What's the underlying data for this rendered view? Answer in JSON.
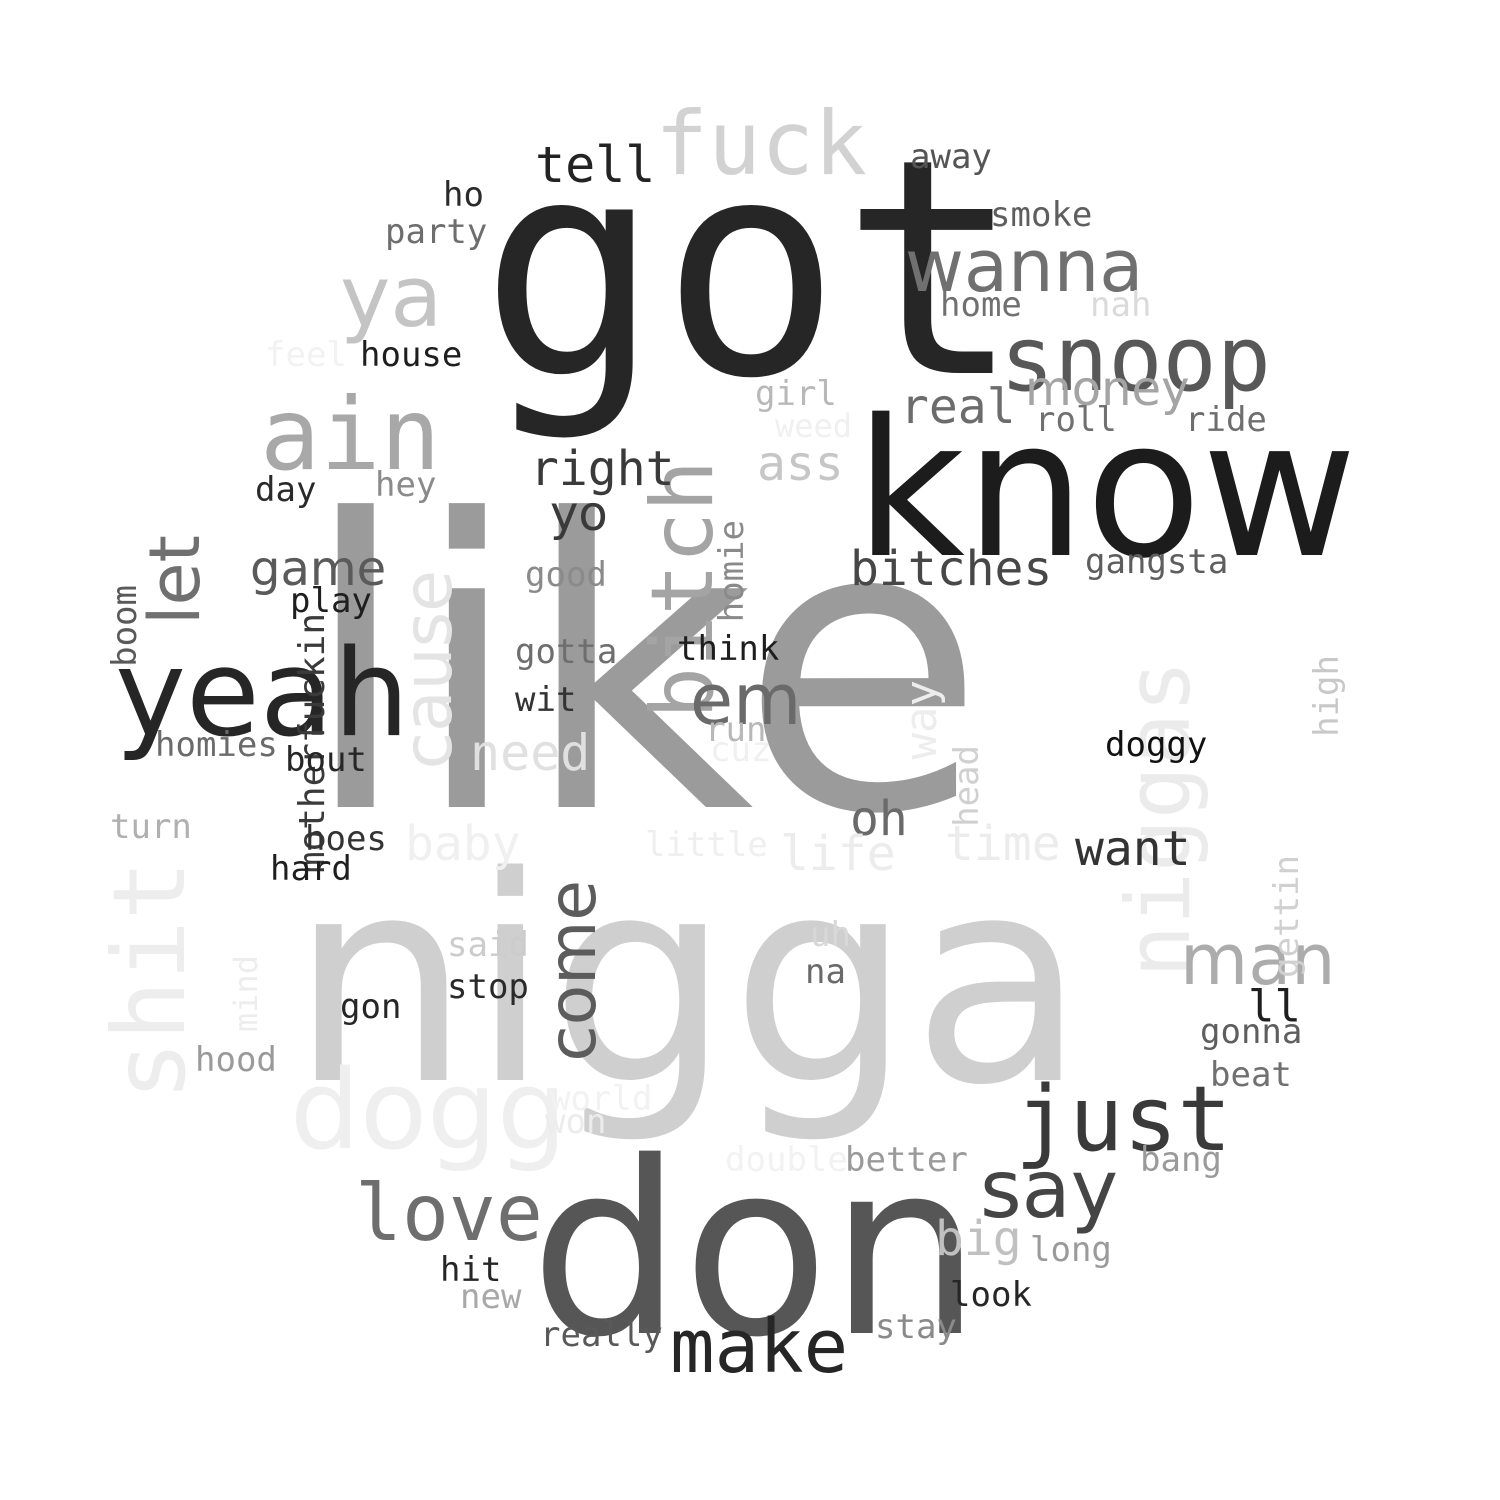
{
  "words": [
    {
      "id": "like",
      "text": "like",
      "color": "#9b9b9b"
    },
    {
      "id": "nigga",
      "text": "nigga",
      "color": "#cfcfcf"
    },
    {
      "id": "got",
      "text": "got",
      "color": "#262626"
    },
    {
      "id": "know",
      "text": "know",
      "color": "#1c1c1c"
    },
    {
      "id": "don",
      "text": "don",
      "color": "#565656"
    },
    {
      "id": "fuck",
      "text": "fuck",
      "color": "#d2d2d2"
    },
    {
      "id": "yeah",
      "text": "yeah",
      "color": "#262626"
    },
    {
      "id": "ain",
      "text": "ain",
      "color": "#a8a8a8"
    },
    {
      "id": "snoop",
      "text": "snoop",
      "color": "#585858"
    },
    {
      "id": "wanna",
      "text": "wanna",
      "color": "#707070"
    },
    {
      "id": "ya",
      "text": "ya",
      "color": "#c4c4c4"
    },
    {
      "id": "dogg",
      "text": "dogg",
      "color": "#efefef"
    },
    {
      "id": "just",
      "text": "just",
      "color": "#3a3a3a"
    },
    {
      "id": "say",
      "text": "say",
      "color": "#454545"
    },
    {
      "id": "make",
      "text": "make",
      "color": "#262626"
    },
    {
      "id": "love",
      "text": "love",
      "color": "#6e6e6e"
    },
    {
      "id": "bitch",
      "text": "bitch",
      "color": "#a4a4a4"
    },
    {
      "id": "niggas",
      "text": "niggas",
      "color": "#ebebeb"
    },
    {
      "id": "shit",
      "text": "shit",
      "color": "#ededed"
    },
    {
      "id": "cause",
      "text": "cause",
      "color": "#e4e4e4"
    },
    {
      "id": "come",
      "text": "come",
      "color": "#5c5c5c"
    },
    {
      "id": "let",
      "text": "let",
      "color": "#707070"
    },
    {
      "id": "em",
      "text": "em",
      "color": "#6a6a6a"
    },
    {
      "id": "man",
      "text": "man",
      "color": "#acacac"
    },
    {
      "id": "money",
      "text": "money",
      "color": "#a4a4a4"
    },
    {
      "id": "real",
      "text": "real",
      "color": "#6c6c6c"
    },
    {
      "id": "bitches",
      "text": "bitches",
      "color": "#474747"
    },
    {
      "id": "right",
      "text": "right",
      "color": "#3a3a3a"
    },
    {
      "id": "tell",
      "text": "tell",
      "color": "#232323"
    },
    {
      "id": "yo",
      "text": "yo",
      "color": "#3a3a3a"
    },
    {
      "id": "game",
      "text": "game",
      "color": "#5a5a5a"
    },
    {
      "id": "need",
      "text": "need",
      "color": "#e0e0e0"
    },
    {
      "id": "want",
      "text": "want",
      "color": "#333333"
    },
    {
      "id": "oh",
      "text": "oh",
      "color": "#6a6a6a"
    },
    {
      "id": "time",
      "text": "time",
      "color": "#ececec"
    },
    {
      "id": "life",
      "text": "life",
      "color": "#ececec"
    },
    {
      "id": "baby",
      "text": "baby",
      "color": "#f0f0f0"
    },
    {
      "id": "big",
      "text": "big",
      "color": "#c0c0c0"
    },
    {
      "id": "ass",
      "text": "ass",
      "color": "#c6c6c6"
    },
    {
      "id": "way",
      "text": "way",
      "color": "#ededed"
    },
    {
      "id": "motherfuckin",
      "text": "motherfuckin",
      "color": "#3a3a3a"
    },
    {
      "id": "homie",
      "text": "homie",
      "color": "#8a8a8a"
    },
    {
      "id": "head",
      "text": "head",
      "color": "#d0d0d0"
    },
    {
      "id": "gettin",
      "text": "gettin",
      "color": "#d0d0d0"
    },
    {
      "id": "high",
      "text": "high",
      "color": "#c8c8c8"
    },
    {
      "id": "boom",
      "text": "boom",
      "color": "#595959"
    },
    {
      "id": "mind",
      "text": "mind",
      "color": "#ededed"
    },
    {
      "id": "away",
      "text": "away",
      "color": "#555555"
    },
    {
      "id": "smoke",
      "text": "smoke",
      "color": "#5e5e5e"
    },
    {
      "id": "home",
      "text": "home",
      "color": "#707070"
    },
    {
      "id": "nah",
      "text": "nah",
      "color": "#dadada"
    },
    {
      "id": "ho",
      "text": "ho",
      "color": "#2a2a2a"
    },
    {
      "id": "party",
      "text": "party",
      "color": "#6e6e6e"
    },
    {
      "id": "house",
      "text": "house",
      "color": "#1e1e1e"
    },
    {
      "id": "feel",
      "text": "feel",
      "color": "#f2f2f2"
    },
    {
      "id": "girl",
      "text": "girl",
      "color": "#b8b8b8"
    },
    {
      "id": "weed",
      "text": "weed",
      "color": "#f0f0f0"
    },
    {
      "id": "roll",
      "text": "roll",
      "color": "#707070"
    },
    {
      "id": "ride",
      "text": "ride",
      "color": "#6e6e6e"
    },
    {
      "id": "day",
      "text": "day",
      "color": "#2a2a2a"
    },
    {
      "id": "hey",
      "text": "hey",
      "color": "#8a8a8a"
    },
    {
      "id": "good",
      "text": "good",
      "color": "#8a8a8a"
    },
    {
      "id": "gangsta",
      "text": "gangsta",
      "color": "#5e5e5e"
    },
    {
      "id": "play",
      "text": "play",
      "color": "#1e1e1e"
    },
    {
      "id": "gotta",
      "text": "gotta",
      "color": "#6e6e6e"
    },
    {
      "id": "think",
      "text": "think",
      "color": "#1e1e1e"
    },
    {
      "id": "wit",
      "text": "wit",
      "color": "#333333"
    },
    {
      "id": "run",
      "text": "run",
      "color": "#b8b8b8"
    },
    {
      "id": "cuz",
      "text": "cuz",
      "color": "#f0f0f0"
    },
    {
      "id": "doggy",
      "text": "doggy",
      "color": "#111111"
    },
    {
      "id": "homies",
      "text": "homies",
      "color": "#6a6a6a"
    },
    {
      "id": "bout",
      "text": "bout",
      "color": "#262626"
    },
    {
      "id": "turn",
      "text": "turn",
      "color": "#b0b0b0"
    },
    {
      "id": "hoes",
      "text": "hoes",
      "color": "#333333"
    },
    {
      "id": "hard",
      "text": "hard",
      "color": "#1e1e1e"
    },
    {
      "id": "little",
      "text": "little",
      "color": "#efefef"
    },
    {
      "id": "said",
      "text": "said",
      "color": "#cccccc"
    },
    {
      "id": "stop",
      "text": "stop",
      "color": "#2a2a2a"
    },
    {
      "id": "uh",
      "text": "uh",
      "color": "#d8d8d8"
    },
    {
      "id": "na",
      "text": "na",
      "color": "#6a6a6a"
    },
    {
      "id": "ll",
      "text": "ll",
      "color": "#1e1e1e"
    },
    {
      "id": "gonna",
      "text": "gonna",
      "color": "#5e5e5e"
    },
    {
      "id": "gon",
      "text": "gon",
      "color": "#262626"
    },
    {
      "id": "hood",
      "text": "hood",
      "color": "#9a9a9a"
    },
    {
      "id": "beat",
      "text": "beat",
      "color": "#707070"
    },
    {
      "id": "world",
      "text": "world",
      "color": "#f2f2f2"
    },
    {
      "id": "won",
      "text": "won",
      "color": "#ececec"
    },
    {
      "id": "double",
      "text": "double",
      "color": "#f2f2f2"
    },
    {
      "id": "better",
      "text": "better",
      "color": "#9a9a9a"
    },
    {
      "id": "bang",
      "text": "bang",
      "color": "#9a9a9a"
    },
    {
      "id": "long",
      "text": "long",
      "color": "#9a9a9a"
    },
    {
      "id": "hit",
      "text": "hit",
      "color": "#262626"
    },
    {
      "id": "new",
      "text": "new",
      "color": "#a8a8a8"
    },
    {
      "id": "look",
      "text": "look",
      "color": "#262626"
    },
    {
      "id": "really",
      "text": "really",
      "color": "#595959"
    },
    {
      "id": "stay",
      "text": "stay",
      "color": "#8a8a8a"
    }
  ]
}
